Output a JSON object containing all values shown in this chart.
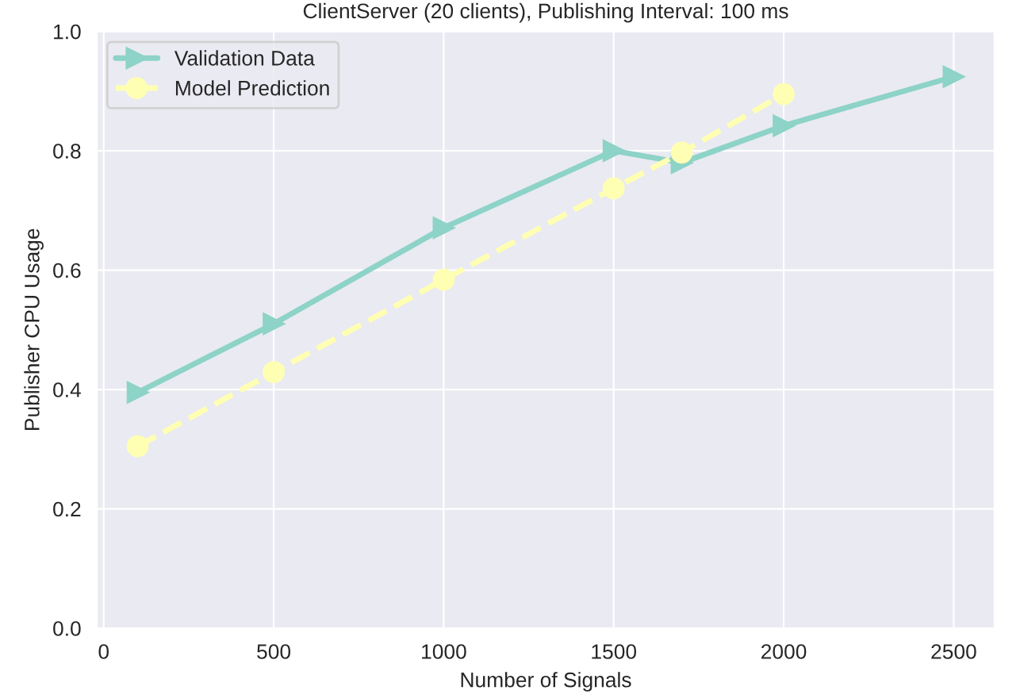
{
  "chart_data": {
    "type": "line",
    "title": "ClientServer (20 clients), Publishing Interval: 100 ms",
    "xlabel": "Number of Signals",
    "ylabel": "Publisher CPU Usage",
    "series": [
      {
        "name": "Validation Data",
        "color": "#8dd3c7",
        "marker": "triangle",
        "line_style": "solid",
        "x": [
          100,
          500,
          1000,
          1500,
          1700,
          2000,
          2500
        ],
        "values": [
          0.395,
          0.51,
          0.671,
          0.8,
          0.78,
          0.842,
          0.924
        ]
      },
      {
        "name": "Model Prediction",
        "color": "#ffffb3",
        "marker": "circle",
        "line_style": "dashed",
        "x": [
          100,
          500,
          1000,
          1500,
          1700,
          2000
        ],
        "values": [
          0.305,
          0.429,
          0.584,
          0.737,
          0.797,
          0.895
        ]
      }
    ],
    "xlim": [
      -20,
      2620
    ],
    "xticks": [
      0,
      500,
      1000,
      1500,
      2000,
      2500
    ],
    "ylim": [
      0,
      1.0
    ],
    "yticks": [
      {
        "value": 0,
        "label": "0.0"
      },
      {
        "value": 0.2,
        "label": "0.2"
      },
      {
        "value": 0.4,
        "label": "0.4"
      },
      {
        "value": 0.6,
        "label": "0.6"
      },
      {
        "value": 0.8,
        "label": "0.8"
      },
      {
        "value": 1.0,
        "label": "1.0"
      }
    ],
    "grid": true,
    "legend": "top left"
  }
}
